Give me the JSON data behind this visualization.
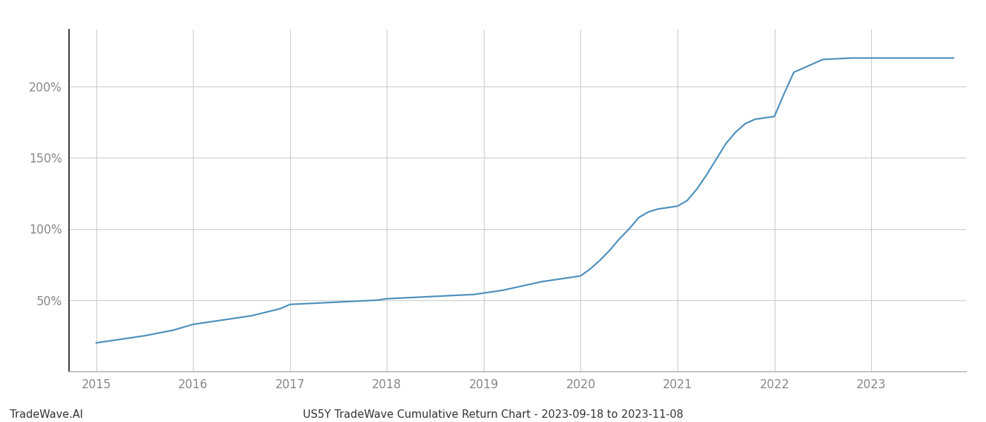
{
  "x_years": [
    2015.0,
    2015.2,
    2015.5,
    2015.8,
    2016.0,
    2016.3,
    2016.6,
    2016.9,
    2017.0,
    2017.3,
    2017.6,
    2017.9,
    2018.0,
    2018.3,
    2018.6,
    2018.9,
    2019.0,
    2019.2,
    2019.4,
    2019.6,
    2019.8,
    2020.0,
    2020.1,
    2020.2,
    2020.3,
    2020.4,
    2020.5,
    2020.6,
    2020.7,
    2020.8,
    2020.9,
    2021.0,
    2021.1,
    2021.2,
    2021.3,
    2021.4,
    2021.5,
    2021.6,
    2021.7,
    2021.8,
    2021.9,
    2022.0,
    2022.1,
    2022.2,
    2022.5,
    2022.8,
    2023.0,
    2023.2,
    2023.5,
    2023.85
  ],
  "y_values": [
    20,
    22,
    25,
    29,
    33,
    36,
    39,
    44,
    47,
    48,
    49,
    50,
    51,
    52,
    53,
    54,
    55,
    57,
    60,
    63,
    65,
    67,
    72,
    78,
    85,
    93,
    100,
    108,
    112,
    114,
    115,
    116,
    120,
    128,
    138,
    149,
    160,
    168,
    174,
    177,
    178,
    179,
    195,
    210,
    219,
    220,
    220,
    220,
    220,
    220
  ],
  "line_color": "#4d8fbd",
  "background_color": "#ffffff",
  "grid_color": "#cccccc",
  "tick_color": "#888888",
  "title_text": "US5Y TradeWave Cumulative Return Chart - 2023-09-18 to 2023-11-08",
  "watermark_text": "TradeWave.AI",
  "xlim": [
    2014.72,
    2023.98
  ],
  "ylim": [
    0,
    240
  ],
  "yticks": [
    50,
    100,
    150,
    200
  ],
  "ytick_labels": [
    "50%",
    "100%",
    "150%",
    "200%"
  ],
  "xticks": [
    2015,
    2016,
    2017,
    2018,
    2019,
    2020,
    2021,
    2022,
    2023
  ],
  "line_width": 1.6,
  "title_fontsize": 11,
  "tick_fontsize": 12,
  "watermark_fontsize": 11
}
